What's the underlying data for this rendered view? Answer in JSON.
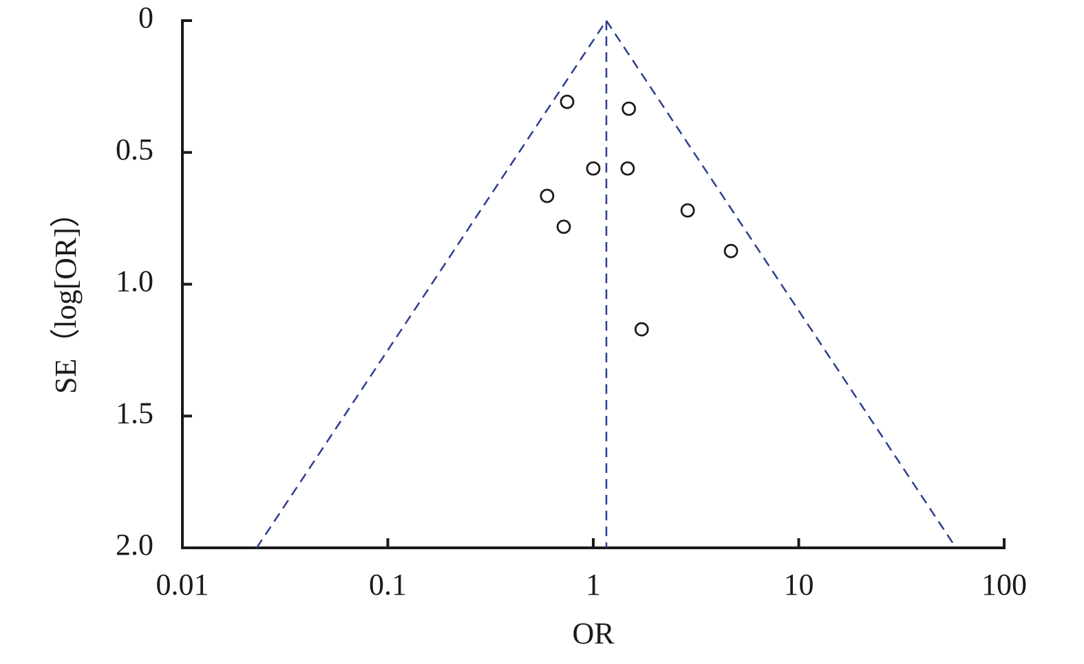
{
  "chart_data": {
    "type": "scatter",
    "xlabel": "OR",
    "ylabel": "SE（log[OR]）",
    "x": [
      0.746,
      1.49,
      1.0,
      1.47,
      0.596,
      0.718,
      2.88,
      4.68,
      1.72
    ],
    "values": [
      0.308,
      0.334,
      0.561,
      0.561,
      0.665,
      0.782,
      0.72,
      0.874,
      1.171
    ],
    "color": "#1a1a1a",
    "xlim": [
      0.01,
      100
    ],
    "xticks": [
      0.01,
      0.1,
      1,
      10,
      100
    ],
    "xscale": "log",
    "ylim": [
      2,
      0
    ],
    "yticks": [
      0,
      0.5,
      {
        "value": 1,
        "label": "1.0"
      },
      1.5,
      {
        "value": 2,
        "label": "2.0"
      }
    ],
    "funnel": {
      "x": [
        0.023,
        1.158,
        58.3
      ],
      "y": [
        2,
        0,
        2
      ],
      "color": "#2b3d8f"
    },
    "summary_line": {
      "x": [
        1.158,
        1.158
      ],
      "y": [
        0,
        2
      ],
      "color": "#2b3d8f"
    },
    "grid": false
  }
}
